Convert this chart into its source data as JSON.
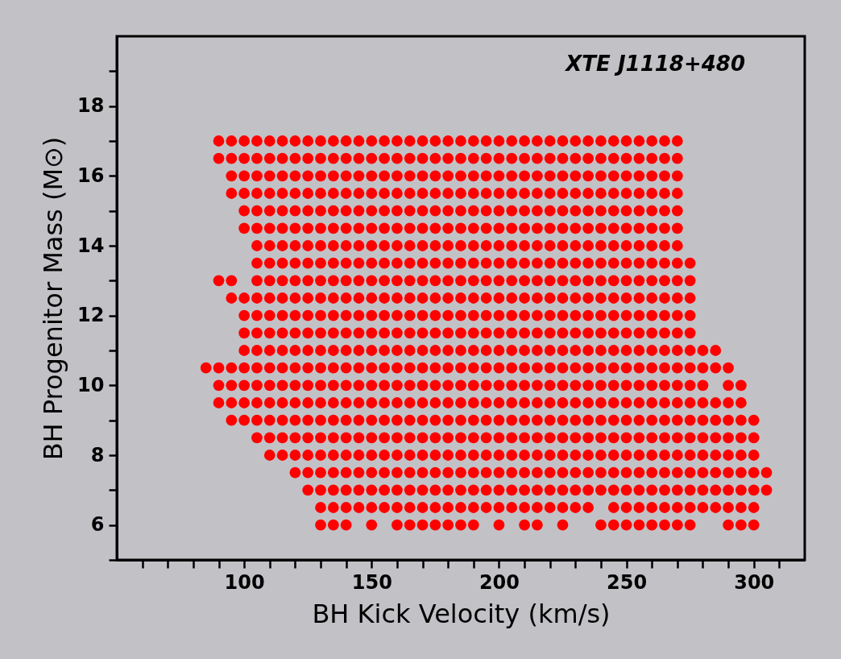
{
  "chart_data": {
    "type": "scatter",
    "xlabel": "BH Kick Velocity (km/s)",
    "ylabel": "BH Progenitor Mass (M⊙)",
    "annotations": [
      "XTE J1118+480"
    ],
    "xlim": [
      50,
      320
    ],
    "ylim": [
      5,
      20
    ],
    "xticks": [
      {
        "value": 60,
        "label": null
      },
      {
        "value": 70,
        "label": null
      },
      {
        "value": 80,
        "label": null
      },
      {
        "value": 90,
        "label": null
      },
      100,
      {
        "value": 110,
        "label": null
      },
      {
        "value": 120,
        "label": null
      },
      {
        "value": 130,
        "label": null
      },
      {
        "value": 140,
        "label": null
      },
      150,
      {
        "value": 160,
        "label": null
      },
      {
        "value": 170,
        "label": null
      },
      {
        "value": 180,
        "label": null
      },
      {
        "value": 190,
        "label": null
      },
      200,
      {
        "value": 210,
        "label": null
      },
      {
        "value": 220,
        "label": null
      },
      {
        "value": 230,
        "label": null
      },
      {
        "value": 240,
        "label": null
      },
      250,
      {
        "value": 260,
        "label": null
      },
      {
        "value": 270,
        "label": null
      },
      {
        "value": 280,
        "label": null
      },
      {
        "value": 290,
        "label": null
      },
      300,
      {
        "value": 310,
        "label": null
      }
    ],
    "yticks": [
      {
        "value": 5,
        "label": null
      },
      6,
      {
        "value": 7,
        "label": null
      },
      8,
      {
        "value": 9,
        "label": null
      },
      10,
      {
        "value": 11,
        "label": null
      },
      12,
      {
        "value": 13,
        "label": null
      },
      14,
      {
        "value": 15,
        "label": null
      },
      16,
      {
        "value": 17,
        "label": null
      },
      18,
      {
        "value": 19,
        "label": null
      }
    ],
    "grid": false,
    "legend": false,
    "marker": "circle",
    "series": [
      {
        "color": "#ff0000",
        "x": [
          90,
          95,
          100,
          105,
          110,
          115,
          120,
          125,
          130,
          135,
          140,
          145,
          150,
          155,
          160,
          165,
          170,
          175,
          180,
          185,
          190,
          195,
          200,
          205,
          210,
          215,
          220,
          225,
          230,
          235,
          240,
          245,
          250,
          255,
          260,
          265,
          270
        ],
        "values": [
          17,
          17,
          17,
          17,
          17,
          17,
          17,
          17,
          17,
          17,
          17,
          17,
          17,
          17,
          17,
          17,
          17,
          17,
          17,
          17,
          17,
          17,
          17,
          17,
          17,
          17,
          17,
          17,
          17,
          17,
          17,
          17,
          17,
          17,
          17,
          17,
          17
        ]
      },
      {
        "color": "#ff0000",
        "x": [
          90,
          95,
          100,
          105,
          110,
          115,
          120,
          125,
          130,
          135,
          140,
          145,
          150,
          155,
          160,
          165,
          170,
          175,
          180,
          185,
          190,
          195,
          200,
          205,
          210,
          215,
          220,
          225,
          230,
          235,
          240,
          245,
          250,
          255,
          260,
          265,
          270
        ],
        "values": [
          16.5,
          16.5,
          16.5,
          16.5,
          16.5,
          16.5,
          16.5,
          16.5,
          16.5,
          16.5,
          16.5,
          16.5,
          16.5,
          16.5,
          16.5,
          16.5,
          16.5,
          16.5,
          16.5,
          16.5,
          16.5,
          16.5,
          16.5,
          16.5,
          16.5,
          16.5,
          16.5,
          16.5,
          16.5,
          16.5,
          16.5,
          16.5,
          16.5,
          16.5,
          16.5,
          16.5,
          16.5
        ]
      },
      {
        "color": "#ff0000",
        "x": [
          95,
          100,
          105,
          110,
          115,
          120,
          125,
          130,
          135,
          140,
          145,
          150,
          155,
          160,
          165,
          170,
          175,
          180,
          185,
          190,
          195,
          200,
          205,
          210,
          215,
          220,
          225,
          230,
          235,
          240,
          245,
          250,
          255,
          260,
          265,
          270
        ],
        "values": [
          16,
          16,
          16,
          16,
          16,
          16,
          16,
          16,
          16,
          16,
          16,
          16,
          16,
          16,
          16,
          16,
          16,
          16,
          16,
          16,
          16,
          16,
          16,
          16,
          16,
          16,
          16,
          16,
          16,
          16,
          16,
          16,
          16,
          16,
          16,
          16
        ]
      },
      {
        "color": "#ff0000",
        "x": [
          95,
          100,
          105,
          110,
          115,
          120,
          125,
          130,
          135,
          140,
          145,
          150,
          155,
          160,
          165,
          170,
          175,
          180,
          185,
          190,
          195,
          200,
          205,
          210,
          215,
          220,
          225,
          230,
          235,
          240,
          245,
          250,
          255,
          260,
          265,
          270
        ],
        "values": [
          15.5,
          15.5,
          15.5,
          15.5,
          15.5,
          15.5,
          15.5,
          15.5,
          15.5,
          15.5,
          15.5,
          15.5,
          15.5,
          15.5,
          15.5,
          15.5,
          15.5,
          15.5,
          15.5,
          15.5,
          15.5,
          15.5,
          15.5,
          15.5,
          15.5,
          15.5,
          15.5,
          15.5,
          15.5,
          15.5,
          15.5,
          15.5,
          15.5,
          15.5,
          15.5,
          15.5
        ]
      },
      {
        "color": "#ff0000",
        "x": [
          100,
          105,
          110,
          115,
          120,
          125,
          130,
          135,
          140,
          145,
          150,
          155,
          160,
          165,
          170,
          175,
          180,
          185,
          190,
          195,
          200,
          205,
          210,
          215,
          220,
          225,
          230,
          235,
          240,
          245,
          250,
          255,
          260,
          265,
          270
        ],
        "values": [
          15,
          15,
          15,
          15,
          15,
          15,
          15,
          15,
          15,
          15,
          15,
          15,
          15,
          15,
          15,
          15,
          15,
          15,
          15,
          15,
          15,
          15,
          15,
          15,
          15,
          15,
          15,
          15,
          15,
          15,
          15,
          15,
          15,
          15,
          15
        ]
      },
      {
        "color": "#ff0000",
        "x": [
          100,
          105,
          110,
          115,
          120,
          125,
          130,
          135,
          140,
          145,
          150,
          155,
          160,
          165,
          170,
          175,
          180,
          185,
          190,
          195,
          200,
          205,
          210,
          215,
          220,
          225,
          230,
          235,
          240,
          245,
          250,
          255,
          260,
          265,
          270
        ],
        "values": [
          14.5,
          14.5,
          14.5,
          14.5,
          14.5,
          14.5,
          14.5,
          14.5,
          14.5,
          14.5,
          14.5,
          14.5,
          14.5,
          14.5,
          14.5,
          14.5,
          14.5,
          14.5,
          14.5,
          14.5,
          14.5,
          14.5,
          14.5,
          14.5,
          14.5,
          14.5,
          14.5,
          14.5,
          14.5,
          14.5,
          14.5,
          14.5,
          14.5,
          14.5,
          14.5
        ]
      },
      {
        "color": "#ff0000",
        "x": [
          105,
          110,
          115,
          120,
          125,
          130,
          135,
          140,
          145,
          150,
          155,
          160,
          165,
          170,
          175,
          180,
          185,
          190,
          195,
          200,
          205,
          210,
          215,
          220,
          225,
          230,
          235,
          240,
          245,
          250,
          255,
          260,
          265,
          270
        ],
        "values": [
          14,
          14,
          14,
          14,
          14,
          14,
          14,
          14,
          14,
          14,
          14,
          14,
          14,
          14,
          14,
          14,
          14,
          14,
          14,
          14,
          14,
          14,
          14,
          14,
          14,
          14,
          14,
          14,
          14,
          14,
          14,
          14,
          14,
          14
        ]
      },
      {
        "color": "#ff0000",
        "x": [
          105,
          110,
          115,
          120,
          125,
          130,
          135,
          140,
          145,
          150,
          155,
          160,
          165,
          170,
          175,
          180,
          185,
          190,
          195,
          200,
          205,
          210,
          215,
          220,
          225,
          230,
          235,
          240,
          245,
          250,
          255,
          260,
          265,
          270,
          275
        ],
        "values": [
          13.5,
          13.5,
          13.5,
          13.5,
          13.5,
          13.5,
          13.5,
          13.5,
          13.5,
          13.5,
          13.5,
          13.5,
          13.5,
          13.5,
          13.5,
          13.5,
          13.5,
          13.5,
          13.5,
          13.5,
          13.5,
          13.5,
          13.5,
          13.5,
          13.5,
          13.5,
          13.5,
          13.5,
          13.5,
          13.5,
          13.5,
          13.5,
          13.5,
          13.5,
          13.5
        ]
      },
      {
        "color": "#ff0000",
        "x": [
          90,
          95,
          105,
          110,
          115,
          120,
          125,
          130,
          135,
          140,
          145,
          150,
          155,
          160,
          165,
          170,
          175,
          180,
          185,
          190,
          195,
          200,
          205,
          210,
          215,
          220,
          225,
          230,
          235,
          240,
          245,
          250,
          255,
          260,
          265,
          270,
          275
        ],
        "values": [
          13,
          13,
          13,
          13,
          13,
          13,
          13,
          13,
          13,
          13,
          13,
          13,
          13,
          13,
          13,
          13,
          13,
          13,
          13,
          13,
          13,
          13,
          13,
          13,
          13,
          13,
          13,
          13,
          13,
          13,
          13,
          13,
          13,
          13,
          13,
          13,
          13
        ]
      },
      {
        "color": "#ff0000",
        "x": [
          95,
          100,
          105,
          110,
          115,
          120,
          125,
          130,
          135,
          140,
          145,
          150,
          155,
          160,
          165,
          170,
          175,
          180,
          185,
          190,
          195,
          200,
          205,
          210,
          215,
          220,
          225,
          230,
          235,
          240,
          245,
          250,
          255,
          260,
          265,
          270,
          275
        ],
        "values": [
          12.5,
          12.5,
          12.5,
          12.5,
          12.5,
          12.5,
          12.5,
          12.5,
          12.5,
          12.5,
          12.5,
          12.5,
          12.5,
          12.5,
          12.5,
          12.5,
          12.5,
          12.5,
          12.5,
          12.5,
          12.5,
          12.5,
          12.5,
          12.5,
          12.5,
          12.5,
          12.5,
          12.5,
          12.5,
          12.5,
          12.5,
          12.5,
          12.5,
          12.5,
          12.5,
          12.5,
          12.5
        ]
      },
      {
        "color": "#ff0000",
        "x": [
          100,
          105,
          110,
          115,
          120,
          125,
          130,
          135,
          140,
          145,
          150,
          155,
          160,
          165,
          170,
          175,
          180,
          185,
          190,
          195,
          200,
          205,
          210,
          215,
          220,
          225,
          230,
          235,
          240,
          245,
          250,
          255,
          260,
          265,
          270,
          275
        ],
        "values": [
          12,
          12,
          12,
          12,
          12,
          12,
          12,
          12,
          12,
          12,
          12,
          12,
          12,
          12,
          12,
          12,
          12,
          12,
          12,
          12,
          12,
          12,
          12,
          12,
          12,
          12,
          12,
          12,
          12,
          12,
          12,
          12,
          12,
          12,
          12,
          12
        ]
      },
      {
        "color": "#ff0000",
        "x": [
          100,
          105,
          110,
          115,
          120,
          125,
          130,
          135,
          140,
          145,
          150,
          155,
          160,
          165,
          170,
          175,
          180,
          185,
          190,
          195,
          200,
          205,
          210,
          215,
          220,
          225,
          230,
          235,
          240,
          245,
          250,
          255,
          260,
          265,
          270,
          275
        ],
        "values": [
          11.5,
          11.5,
          11.5,
          11.5,
          11.5,
          11.5,
          11.5,
          11.5,
          11.5,
          11.5,
          11.5,
          11.5,
          11.5,
          11.5,
          11.5,
          11.5,
          11.5,
          11.5,
          11.5,
          11.5,
          11.5,
          11.5,
          11.5,
          11.5,
          11.5,
          11.5,
          11.5,
          11.5,
          11.5,
          11.5,
          11.5,
          11.5,
          11.5,
          11.5,
          11.5,
          11.5
        ]
      },
      {
        "color": "#ff0000",
        "x": [
          100,
          105,
          110,
          115,
          120,
          125,
          130,
          135,
          140,
          145,
          150,
          155,
          160,
          165,
          170,
          175,
          180,
          185,
          190,
          195,
          200,
          205,
          210,
          215,
          220,
          225,
          230,
          235,
          240,
          245,
          250,
          255,
          260,
          265,
          270,
          275,
          280,
          285
        ],
        "values": [
          11,
          11,
          11,
          11,
          11,
          11,
          11,
          11,
          11,
          11,
          11,
          11,
          11,
          11,
          11,
          11,
          11,
          11,
          11,
          11,
          11,
          11,
          11,
          11,
          11,
          11,
          11,
          11,
          11,
          11,
          11,
          11,
          11,
          11,
          11,
          11,
          11,
          11
        ]
      },
      {
        "color": "#ff0000",
        "x": [
          85,
          90,
          95,
          100,
          105,
          110,
          115,
          120,
          125,
          130,
          135,
          140,
          145,
          150,
          155,
          160,
          165,
          170,
          175,
          180,
          185,
          190,
          195,
          200,
          205,
          210,
          215,
          220,
          225,
          230,
          235,
          240,
          245,
          250,
          255,
          260,
          265,
          270,
          275,
          280,
          285,
          290
        ],
        "values": [
          10.5,
          10.5,
          10.5,
          10.5,
          10.5,
          10.5,
          10.5,
          10.5,
          10.5,
          10.5,
          10.5,
          10.5,
          10.5,
          10.5,
          10.5,
          10.5,
          10.5,
          10.5,
          10.5,
          10.5,
          10.5,
          10.5,
          10.5,
          10.5,
          10.5,
          10.5,
          10.5,
          10.5,
          10.5,
          10.5,
          10.5,
          10.5,
          10.5,
          10.5,
          10.5,
          10.5,
          10.5,
          10.5,
          10.5,
          10.5,
          10.5,
          10.5
        ]
      },
      {
        "color": "#ff0000",
        "x": [
          90,
          95,
          100,
          105,
          110,
          115,
          120,
          125,
          130,
          135,
          140,
          145,
          150,
          155,
          160,
          165,
          170,
          175,
          180,
          185,
          190,
          195,
          200,
          205,
          210,
          215,
          220,
          225,
          230,
          235,
          240,
          245,
          250,
          255,
          260,
          265,
          270,
          275,
          280,
          290,
          295
        ],
        "values": [
          10,
          10,
          10,
          10,
          10,
          10,
          10,
          10,
          10,
          10,
          10,
          10,
          10,
          10,
          10,
          10,
          10,
          10,
          10,
          10,
          10,
          10,
          10,
          10,
          10,
          10,
          10,
          10,
          10,
          10,
          10,
          10,
          10,
          10,
          10,
          10,
          10,
          10,
          10,
          10,
          10
        ]
      },
      {
        "color": "#ff0000",
        "x": [
          90,
          95,
          100,
          105,
          110,
          115,
          120,
          125,
          130,
          135,
          140,
          145,
          150,
          155,
          160,
          165,
          170,
          175,
          180,
          185,
          190,
          195,
          200,
          205,
          210,
          215,
          220,
          225,
          230,
          235,
          240,
          245,
          250,
          255,
          260,
          265,
          270,
          275,
          280,
          285,
          290,
          295
        ],
        "values": [
          9.5,
          9.5,
          9.5,
          9.5,
          9.5,
          9.5,
          9.5,
          9.5,
          9.5,
          9.5,
          9.5,
          9.5,
          9.5,
          9.5,
          9.5,
          9.5,
          9.5,
          9.5,
          9.5,
          9.5,
          9.5,
          9.5,
          9.5,
          9.5,
          9.5,
          9.5,
          9.5,
          9.5,
          9.5,
          9.5,
          9.5,
          9.5,
          9.5,
          9.5,
          9.5,
          9.5,
          9.5,
          9.5,
          9.5,
          9.5,
          9.5,
          9.5
        ]
      },
      {
        "color": "#ff0000",
        "x": [
          95,
          100,
          105,
          110,
          115,
          120,
          125,
          130,
          135,
          140,
          145,
          150,
          155,
          160,
          165,
          170,
          175,
          180,
          185,
          190,
          195,
          200,
          205,
          210,
          215,
          220,
          225,
          230,
          235,
          240,
          245,
          250,
          255,
          260,
          265,
          270,
          275,
          280,
          285,
          290,
          295,
          300
        ],
        "values": [
          9,
          9,
          9,
          9,
          9,
          9,
          9,
          9,
          9,
          9,
          9,
          9,
          9,
          9,
          9,
          9,
          9,
          9,
          9,
          9,
          9,
          9,
          9,
          9,
          9,
          9,
          9,
          9,
          9,
          9,
          9,
          9,
          9,
          9,
          9,
          9,
          9,
          9,
          9,
          9,
          9,
          9
        ]
      },
      {
        "color": "#ff0000",
        "x": [
          105,
          110,
          115,
          120,
          125,
          130,
          135,
          140,
          145,
          150,
          155,
          160,
          165,
          170,
          175,
          180,
          185,
          190,
          195,
          200,
          205,
          210,
          215,
          220,
          225,
          230,
          235,
          240,
          245,
          250,
          255,
          260,
          265,
          270,
          275,
          280,
          285,
          290,
          295,
          300
        ],
        "values": [
          8.5,
          8.5,
          8.5,
          8.5,
          8.5,
          8.5,
          8.5,
          8.5,
          8.5,
          8.5,
          8.5,
          8.5,
          8.5,
          8.5,
          8.5,
          8.5,
          8.5,
          8.5,
          8.5,
          8.5,
          8.5,
          8.5,
          8.5,
          8.5,
          8.5,
          8.5,
          8.5,
          8.5,
          8.5,
          8.5,
          8.5,
          8.5,
          8.5,
          8.5,
          8.5,
          8.5,
          8.5,
          8.5,
          8.5,
          8.5
        ]
      },
      {
        "color": "#ff0000",
        "x": [
          110,
          115,
          120,
          125,
          130,
          135,
          140,
          145,
          150,
          155,
          160,
          165,
          170,
          175,
          180,
          185,
          190,
          195,
          200,
          205,
          210,
          215,
          220,
          225,
          230,
          235,
          240,
          245,
          250,
          255,
          260,
          265,
          270,
          275,
          280,
          285,
          290,
          295,
          300
        ],
        "values": [
          8,
          8,
          8,
          8,
          8,
          8,
          8,
          8,
          8,
          8,
          8,
          8,
          8,
          8,
          8,
          8,
          8,
          8,
          8,
          8,
          8,
          8,
          8,
          8,
          8,
          8,
          8,
          8,
          8,
          8,
          8,
          8,
          8,
          8,
          8,
          8,
          8,
          8,
          8
        ]
      },
      {
        "color": "#ff0000",
        "x": [
          120,
          125,
          130,
          135,
          140,
          145,
          150,
          155,
          160,
          165,
          170,
          175,
          180,
          185,
          190,
          195,
          200,
          205,
          210,
          215,
          220,
          225,
          230,
          235,
          240,
          245,
          250,
          255,
          260,
          265,
          270,
          275,
          280,
          285,
          290,
          295,
          300,
          305
        ],
        "values": [
          7.5,
          7.5,
          7.5,
          7.5,
          7.5,
          7.5,
          7.5,
          7.5,
          7.5,
          7.5,
          7.5,
          7.5,
          7.5,
          7.5,
          7.5,
          7.5,
          7.5,
          7.5,
          7.5,
          7.5,
          7.5,
          7.5,
          7.5,
          7.5,
          7.5,
          7.5,
          7.5,
          7.5,
          7.5,
          7.5,
          7.5,
          7.5,
          7.5,
          7.5,
          7.5,
          7.5,
          7.5,
          7.5
        ]
      },
      {
        "color": "#ff0000",
        "x": [
          125,
          130,
          135,
          140,
          145,
          150,
          155,
          160,
          165,
          170,
          175,
          180,
          185,
          190,
          195,
          200,
          205,
          210,
          215,
          220,
          225,
          230,
          235,
          240,
          245,
          250,
          255,
          260,
          265,
          270,
          275,
          280,
          285,
          290,
          295,
          300,
          305
        ],
        "values": [
          7,
          7,
          7,
          7,
          7,
          7,
          7,
          7,
          7,
          7,
          7,
          7,
          7,
          7,
          7,
          7,
          7,
          7,
          7,
          7,
          7,
          7,
          7,
          7,
          7,
          7,
          7,
          7,
          7,
          7,
          7,
          7,
          7,
          7,
          7,
          7,
          7
        ]
      },
      {
        "color": "#ff0000",
        "x": [
          130,
          135,
          140,
          145,
          150,
          155,
          160,
          165,
          170,
          175,
          180,
          185,
          190,
          195,
          200,
          205,
          210,
          215,
          220,
          225,
          230,
          235,
          245,
          250,
          255,
          260,
          265,
          270,
          275,
          280,
          285,
          290,
          295,
          300
        ],
        "values": [
          6.5,
          6.5,
          6.5,
          6.5,
          6.5,
          6.5,
          6.5,
          6.5,
          6.5,
          6.5,
          6.5,
          6.5,
          6.5,
          6.5,
          6.5,
          6.5,
          6.5,
          6.5,
          6.5,
          6.5,
          6.5,
          6.5,
          6.5,
          6.5,
          6.5,
          6.5,
          6.5,
          6.5,
          6.5,
          6.5,
          6.5,
          6.5,
          6.5,
          6.5
        ]
      },
      {
        "color": "#ff0000",
        "x": [
          130,
          135,
          140,
          150,
          160,
          165,
          170,
          175,
          180,
          185,
          190,
          200,
          210,
          215,
          225,
          240,
          245,
          250,
          255,
          260,
          265,
          270,
          275,
          290,
          295,
          300
        ],
        "values": [
          6,
          6,
          6,
          6,
          6,
          6,
          6,
          6,
          6,
          6,
          6,
          6,
          6,
          6,
          6,
          6,
          6,
          6,
          6,
          6,
          6,
          6,
          6,
          6,
          6,
          6
        ]
      }
    ]
  }
}
